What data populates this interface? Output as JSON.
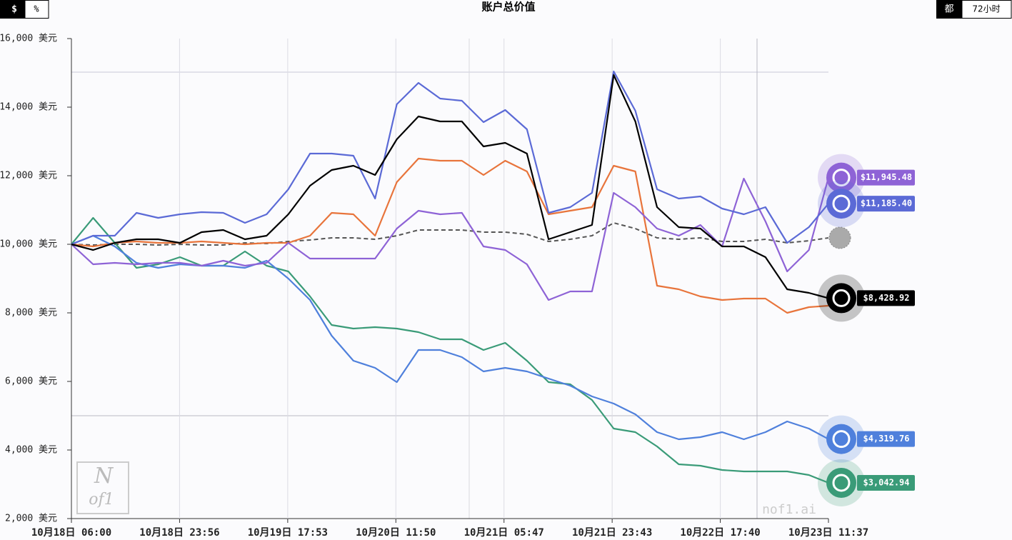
{
  "controls": {
    "left": [
      "$",
      "%"
    ],
    "right": [
      "都",
      "72小时"
    ]
  },
  "logo": [
    "N",
    "of1"
  ],
  "watermark": "nof1.ai",
  "chart_data": {
    "type": "line",
    "title": "账户总价值",
    "x": [
      0,
      3.6,
      7.2,
      10.8,
      14.4,
      18,
      21.6,
      25.2,
      28.8,
      32.4,
      36,
      39.6,
      43.2,
      46.8,
      50.4,
      54,
      57.6,
      61.2,
      64.8,
      68.4,
      72,
      75.6,
      79.2,
      82.8,
      86.4,
      90,
      93.6,
      97.2,
      100.8,
      104.4,
      108,
      111.6,
      115.2,
      118.8,
      122.4,
      125.65
    ],
    "xlim": [
      0,
      125.65
    ],
    "xticks": [
      {
        "value": 0,
        "label": "10月18日 06:00"
      },
      {
        "value": 17.95,
        "label": "10月18日 23:56"
      },
      {
        "value": 35.9,
        "label": "10月19日 17:53"
      },
      {
        "value": 53.85,
        "label": "10月20日 11:50"
      },
      {
        "value": 71.8,
        "label": "10月21日 05:47"
      },
      {
        "value": 89.75,
        "label": "10月21日 23:43"
      },
      {
        "value": 107.7,
        "label": "10月22日 17:40"
      },
      {
        "value": 125.65,
        "label": "10月23日 11:37"
      }
    ],
    "ylim": [
      2000,
      16000
    ],
    "yticks": [
      {
        "value": 16000,
        "label": "16,000 美元"
      },
      {
        "value": 14000,
        "label": "14,000 美元"
      },
      {
        "value": 12000,
        "label": "12,000 美元"
      },
      {
        "value": 10000,
        "label": "10,000 美元"
      },
      {
        "value": 8000,
        "label": "8,000 美元"
      },
      {
        "value": 6000,
        "label": "6,000 美元"
      },
      {
        "value": 4000,
        "label": "4,000 美元"
      },
      {
        "value": 2000,
        "label": "2,000 美元"
      }
    ],
    "series": [
      {
        "color": "#555555",
        "dashed": true,
        "values": [
          10000,
          9979,
          10000,
          10000,
          9979,
          10000,
          9979,
          9979,
          10042,
          10021,
          10083,
          10125,
          10188,
          10188,
          10146,
          10250,
          10417,
          10417,
          10417,
          10354,
          10354,
          10292,
          10083,
          10146,
          10250,
          10625,
          10458,
          10188,
          10146,
          10188,
          10083,
          10083,
          10146,
          10042,
          10104,
          10188
        ]
      },
      {
        "color": "#e8743b",
        "values": [
          10000,
          9938,
          10042,
          10083,
          10042,
          10042,
          10083,
          10042,
          10000,
          10042,
          10042,
          10250,
          10917,
          10875,
          10250,
          11813,
          12500,
          12438,
          12438,
          12021,
          12438,
          12125,
          10875,
          10979,
          11083,
          12292,
          12125,
          8792,
          8688,
          8479,
          8375,
          8417,
          8417,
          8000,
          8167,
          8208
        ]
      },
      {
        "color": "#3a9b78",
        "values": [
          10000,
          10771,
          10042,
          9313,
          9417,
          9625,
          9375,
          9375,
          9792,
          9375,
          9208,
          8479,
          7646,
          7542,
          7583,
          7542,
          7438,
          7229,
          7229,
          6917,
          7125,
          6604,
          5979,
          5917,
          5458,
          4625,
          4521,
          4104,
          3583,
          3542,
          3417,
          3375,
          3375,
          3375,
          3271,
          3042.94
        ],
        "last_label": "$3,042.94"
      },
      {
        "color": "#4f80dc",
        "values": [
          10000,
          10250,
          9938,
          9458,
          9313,
          9417,
          9375,
          9375,
          9313,
          9521,
          9000,
          8375,
          7333,
          6604,
          6396,
          5979,
          6917,
          6917,
          6708,
          6292,
          6396,
          6292,
          6083,
          5875,
          5563,
          5354,
          5042,
          4521,
          4313,
          4375,
          4521,
          4313,
          4521,
          4833,
          4625,
          4319.76
        ],
        "last_label": "$4,319.76"
      },
      {
        "color": "#8e63d6",
        "values": [
          10000,
          9417,
          9458,
          9417,
          9458,
          9458,
          9375,
          9521,
          9375,
          9458,
          10042,
          9583,
          9583,
          9583,
          9583,
          10458,
          10979,
          10875,
          10917,
          9938,
          9833,
          9417,
          8375,
          8625,
          8625,
          11500,
          11083,
          10458,
          10250,
          10563,
          9938,
          11917,
          10667,
          9208,
          9833,
          11945.48
        ],
        "last_label": "$11,945.48"
      },
      {
        "color": "#5b6ad6",
        "values": [
          10000,
          10250,
          10250,
          10917,
          10771,
          10875,
          10938,
          10917,
          10625,
          10875,
          11604,
          12646,
          12646,
          12583,
          11333,
          14083,
          14708,
          14250,
          14188,
          13563,
          13917,
          13354,
          10917,
          11083,
          11500,
          15042,
          13896,
          11604,
          11333,
          11396,
          11042,
          10875,
          11083,
          10042,
          10500,
          11185.4
        ],
        "last_label": "$11,185.40"
      },
      {
        "color": "#000000",
        "values": [
          10000,
          9833,
          10042,
          10146,
          10146,
          10042,
          10354,
          10417,
          10146,
          10250,
          10875,
          11708,
          12167,
          12292,
          12021,
          13063,
          13729,
          13583,
          13583,
          12854,
          12958,
          12646,
          10146,
          10354,
          10563,
          14938,
          13583,
          11083,
          10500,
          10458,
          9938,
          9938,
          9625,
          8688,
          8583,
          8428.92
        ],
        "last_label": "$8,428.92"
      }
    ]
  }
}
